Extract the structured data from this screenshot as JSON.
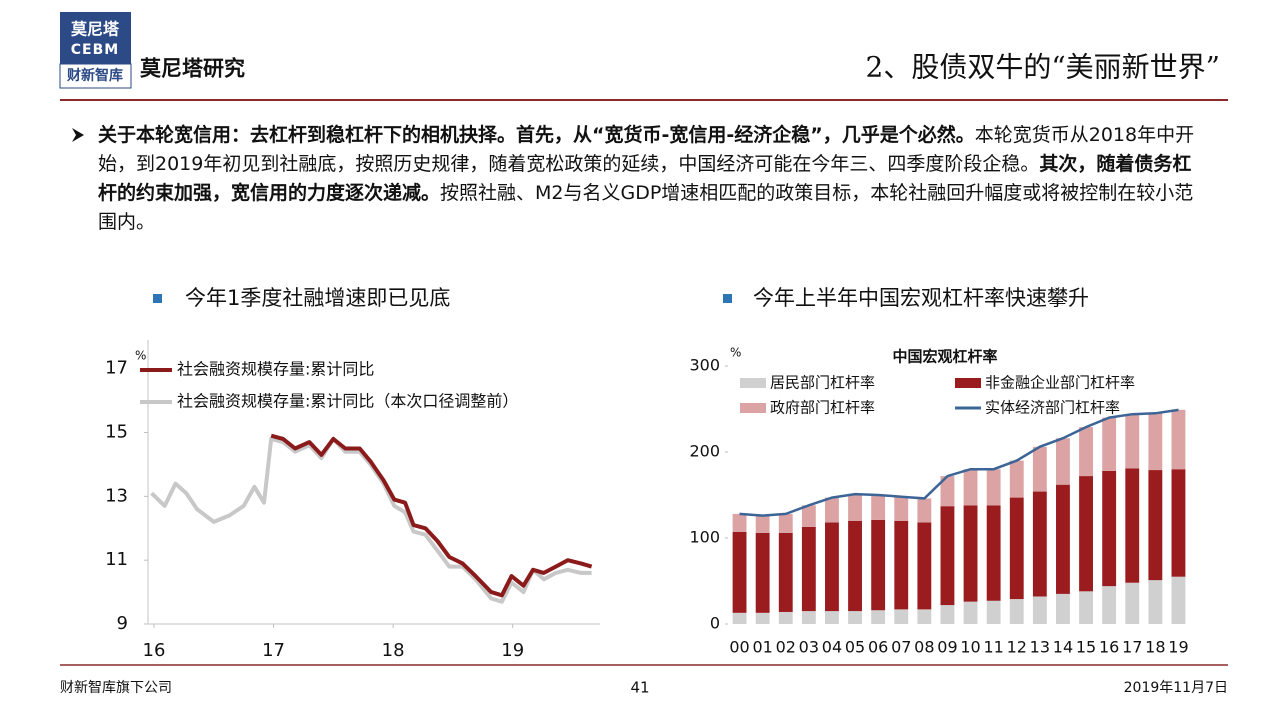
{
  "header": {
    "logo": [
      "莫尼塔",
      "CEBM",
      "财新智库"
    ],
    "brand": "莫尼塔研究",
    "title": "2、股债双牛的“美丽新世界”"
  },
  "body": {
    "paragraph": [
      {
        "text": "关于本轮宽信用：去杠杆到稳杠杆下的相机抉择。首先，从“宽货币-宽信用-经济企稳”，几乎是个必然。",
        "bold": true
      },
      {
        "text": "本轮宽货币从2018年中开始，到2019年初见到社融底，按照历史规律，随着宽松政策的延续，中国经济可能在今年三、四季度阶段企稳。",
        "bold": false
      },
      {
        "text": "其次，随着债务杠杆的约束加强，宽信用的力度逐次递减。",
        "bold": true
      },
      {
        "text": "按照社融、M2与名义GDP增速相匹配的政策目标，本轮社融回升幅度或将被控制在较小范围内。",
        "bold": false
      }
    ]
  },
  "chart_data": [
    {
      "type": "line",
      "title": "今年1季度社融增速即已见底",
      "y_unit": "%",
      "x": [
        15.98,
        16.09,
        16.18,
        16.27,
        16.36,
        16.5,
        16.63,
        16.75,
        16.84,
        16.92,
        16.98,
        17.08,
        17.18,
        17.3,
        17.4,
        17.5,
        17.6,
        17.72,
        17.81,
        17.92,
        18.01,
        18.1,
        18.17,
        18.27,
        18.37,
        18.47,
        18.58,
        18.69,
        18.82,
        18.91,
        18.99,
        19.09,
        19.17,
        19.26,
        19.36,
        19.46,
        19.57,
        19.66
      ],
      "series": [
        {
          "name": "社会融资规模存量:累计同比",
          "color": "#8b1a1a",
          "values": [
            null,
            null,
            null,
            null,
            null,
            null,
            null,
            null,
            null,
            null,
            14.9,
            14.8,
            14.5,
            14.7,
            14.3,
            14.8,
            14.5,
            14.5,
            14.1,
            13.5,
            12.9,
            12.8,
            12.1,
            12.0,
            11.6,
            11.1,
            10.9,
            10.5,
            10.0,
            9.9,
            10.5,
            10.2,
            10.7,
            10.6,
            10.8,
            11.0,
            10.9,
            10.8
          ]
        },
        {
          "name": "社会融资规模存量:累计同比（本次口径调整前）",
          "color": "#c8c8c8",
          "values": [
            13.1,
            12.7,
            13.4,
            13.1,
            12.6,
            12.2,
            12.4,
            12.7,
            13.3,
            12.8,
            14.8,
            14.7,
            14.4,
            14.6,
            14.2,
            14.8,
            14.4,
            14.4,
            14.0,
            13.4,
            12.7,
            12.5,
            11.9,
            11.8,
            11.3,
            10.8,
            10.8,
            10.4,
            9.8,
            9.7,
            10.3,
            10.0,
            10.7,
            10.4,
            10.6,
            10.7,
            10.6,
            10.6
          ]
        }
      ],
      "xlim": [
        15.95,
        19.73
      ],
      "xticks": [
        16,
        17,
        18,
        19
      ],
      "ylim": [
        9,
        17.9
      ],
      "yticks": [
        9,
        11,
        13,
        15,
        17
      ]
    },
    {
      "type": "bar",
      "stacked": true,
      "title": "今年上半年中国宏观杠杆率快速攀升",
      "subtitle": "中国宏观杠杆率",
      "y_unit": "%",
      "categories": [
        "00",
        "01",
        "02",
        "03",
        "04",
        "05",
        "06",
        "07",
        "08",
        "09",
        "10",
        "11",
        "12",
        "13",
        "14",
        "15",
        "16",
        "17",
        "18",
        "19"
      ],
      "series": [
        {
          "name": "居民部门杠杆率",
          "color": "#d0d0d0",
          "values": [
            13,
            13,
            14,
            15,
            15,
            15,
            16,
            17,
            17,
            22,
            26,
            27,
            29,
            32,
            35,
            38,
            44,
            48,
            51,
            55
          ]
        },
        {
          "name": "非金融企业部门杠杆率",
          "color": "#9b1c1f",
          "values": [
            94,
            93,
            92,
            98,
            103,
            105,
            105,
            103,
            101,
            115,
            112,
            111,
            118,
            122,
            127,
            134,
            134,
            133,
            128,
            125
          ]
        },
        {
          "name": "政府部门杠杆率",
          "color": "#dba3a3",
          "values": [
            21,
            20,
            22,
            25,
            29,
            31,
            29,
            28,
            28,
            35,
            42,
            42,
            43,
            52,
            54,
            57,
            62,
            63,
            66,
            69
          ]
        },
        {
          "name": "实体经济部门杠杆率",
          "color": "#3c6496",
          "type": "line",
          "values": [
            128,
            126,
            128,
            138,
            147,
            151,
            150,
            148,
            146,
            172,
            180,
            180,
            190,
            206,
            216,
            229,
            240,
            244,
            245,
            249
          ]
        }
      ],
      "ylim": [
        0,
        300
      ],
      "yticks": [
        0,
        100,
        200,
        300
      ]
    }
  ],
  "footer": {
    "left": "财新智库旗下公司",
    "page": 41,
    "date": "2019年11月7日"
  }
}
